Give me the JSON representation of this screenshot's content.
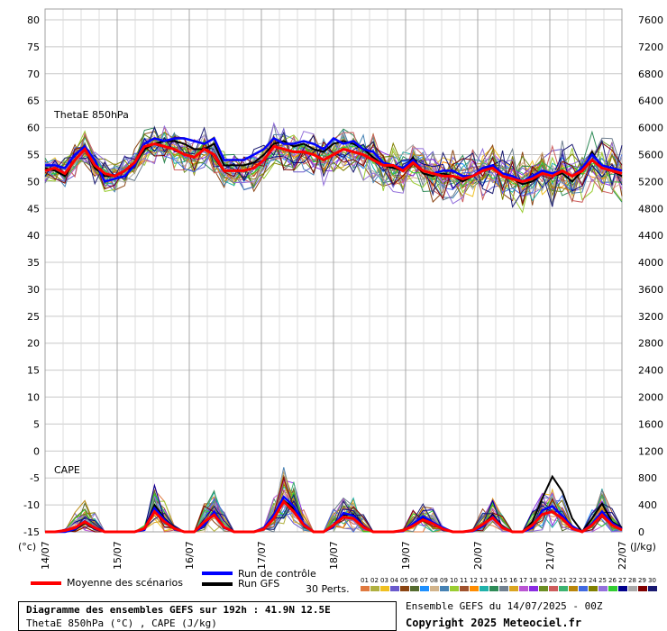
{
  "chart_data": {
    "type": "line",
    "title": "Diagramme des ensembles GEFS sur 192h : 41.9N 12.5E",
    "subtitle": "ThetaE 850hPa (°C) , CAPE (J/kg)",
    "left_axis": {
      "unit_label": "(°c)",
      "ticks": [
        80,
        75,
        70,
        65,
        60,
        55,
        50,
        45,
        40,
        35,
        30,
        25,
        20,
        15,
        10,
        5,
        0,
        -5,
        -10,
        -15
      ],
      "ylim": [
        -15,
        80
      ]
    },
    "right_axis": {
      "unit_label": "(J/kg)",
      "ticks": [
        7600,
        7200,
        6800,
        6400,
        6000,
        5600,
        5200,
        4800,
        4400,
        4000,
        3600,
        3200,
        2800,
        2400,
        2000,
        1600,
        1200,
        800,
        400,
        0
      ],
      "ylim": [
        0,
        7600
      ]
    },
    "x_ticks": [
      "14/07",
      "15/07",
      "16/07",
      "17/07",
      "18/07",
      "19/07",
      "20/07",
      "21/07",
      "22/07"
    ],
    "panel_labels": {
      "thetae": "ThetaE 850hPa",
      "cape": "CAPE"
    },
    "grid": true,
    "step_hours": 6,
    "thetae_mean": [
      52,
      52.5,
      51.5,
      54,
      56,
      53,
      51.5,
      51,
      52,
      53.5,
      56.5,
      57,
      56.5,
      56,
      55,
      54.5,
      56,
      55,
      52,
      52,
      52,
      52.5,
      54,
      56.5,
      56,
      55.5,
      55.5,
      55,
      54,
      55,
      56,
      55.5,
      55,
      54,
      53,
      53,
      52,
      53.5,
      52,
      51.5,
      51,
      51,
      50.5,
      51,
      52,
      52.5,
      51,
      50.5,
      50,
      50.5,
      51.5,
      51,
      52,
      51,
      52,
      54,
      52.5,
      52,
      51.5
    ],
    "thetae_control": [
      53,
      53,
      52.5,
      55,
      56.5,
      54,
      50,
      50.5,
      51,
      53,
      57,
      58,
      57.5,
      58,
      58,
      57.5,
      57,
      58,
      54,
      54,
      54,
      55,
      56,
      58,
      57,
      57,
      57.5,
      57,
      56,
      58,
      57,
      57.5,
      56,
      55.5,
      53.5,
      53,
      52.5,
      54,
      52,
      51.5,
      52,
      52,
      51,
      51,
      52.5,
      53,
      51.5,
      51,
      50,
      51,
      52,
      51.5,
      52,
      51,
      52.5,
      55,
      53,
      52.5,
      52
    ],
    "thetae_gfs": [
      52.5,
      52,
      51,
      54,
      56,
      52.5,
      51,
      51,
      52,
      53,
      56,
      57,
      57.5,
      57.5,
      57,
      56,
      56,
      57,
      53,
      53,
      53,
      53.5,
      55,
      57,
      57.5,
      56.5,
      57,
      56,
      55.5,
      57,
      57.5,
      57,
      56,
      54.5,
      53,
      52.5,
      52,
      54.5,
      51.5,
      51,
      51.5,
      51,
      50,
      51,
      52,
      53,
      51,
      50.5,
      49.5,
      50,
      51.5,
      51,
      51.5,
      50,
      52,
      55.5,
      52.5,
      52,
      51
    ],
    "cape_mean": [
      0,
      0,
      20,
      60,
      150,
      60,
      0,
      0,
      0,
      0,
      50,
      300,
      150,
      50,
      0,
      0,
      150,
      250,
      70,
      0,
      0,
      0,
      40,
      200,
      450,
      300,
      100,
      0,
      0,
      100,
      220,
      200,
      70,
      0,
      0,
      0,
      20,
      90,
      180,
      120,
      40,
      0,
      0,
      20,
      110,
      210,
      60,
      0,
      0,
      100,
      260,
      300,
      200,
      50,
      0,
      100,
      250,
      100,
      30
    ],
    "cape_control": [
      0,
      0,
      0,
      40,
      160,
      50,
      0,
      0,
      0,
      0,
      30,
      350,
      180,
      40,
      0,
      0,
      100,
      300,
      60,
      0,
      0,
      0,
      60,
      250,
      520,
      380,
      120,
      0,
      0,
      80,
      280,
      240,
      80,
      0,
      0,
      0,
      10,
      120,
      230,
      140,
      60,
      0,
      0,
      10,
      80,
      230,
      70,
      0,
      0,
      60,
      320,
      380,
      240,
      80,
      0,
      120,
      300,
      130,
      40
    ],
    "cape_gfs": [
      0,
      0,
      0,
      30,
      130,
      40,
      0,
      0,
      0,
      0,
      40,
      400,
      200,
      60,
      0,
      0,
      120,
      260,
      60,
      0,
      0,
      0,
      50,
      220,
      470,
      340,
      100,
      0,
      0,
      90,
      250,
      260,
      90,
      0,
      0,
      0,
      20,
      100,
      200,
      130,
      50,
      0,
      0,
      20,
      100,
      250,
      80,
      0,
      0,
      150,
      500,
      820,
      600,
      200,
      0,
      200,
      420,
      150,
      60
    ],
    "legend": {
      "mean": "Moyenne des scénarios",
      "control": "Run de contrôle",
      "gfs": "Run GFS",
      "perts_label": "30 Perts."
    },
    "colors": {
      "mean": "#ff0000",
      "control": "#0000ff",
      "gfs": "#000000",
      "grid": "#c8c8c8"
    },
    "perturbations": [
      {
        "name": "01",
        "color": "#e07a3f"
      },
      {
        "name": "02",
        "color": "#b0b040"
      },
      {
        "name": "03",
        "color": "#f0c020"
      },
      {
        "name": "04",
        "color": "#6a5acd"
      },
      {
        "name": "05",
        "color": "#8b4513"
      },
      {
        "name": "06",
        "color": "#556b2f"
      },
      {
        "name": "07",
        "color": "#1e90ff"
      },
      {
        "name": "08",
        "color": "#d2b48c"
      },
      {
        "name": "09",
        "color": "#4682b4"
      },
      {
        "name": "10",
        "color": "#9acd32"
      },
      {
        "name": "11",
        "color": "#a0522d"
      },
      {
        "name": "12",
        "color": "#ff8c00"
      },
      {
        "name": "13",
        "color": "#20b2aa"
      },
      {
        "name": "14",
        "color": "#2e8b57"
      },
      {
        "name": "15",
        "color": "#708090"
      },
      {
        "name": "16",
        "color": "#daa520"
      },
      {
        "name": "17",
        "color": "#ba55d3"
      },
      {
        "name": "18",
        "color": "#8a2be2"
      },
      {
        "name": "19",
        "color": "#6b8e23"
      },
      {
        "name": "20",
        "color": "#cd5c5c"
      },
      {
        "name": "21",
        "color": "#3cb371"
      },
      {
        "name": "22",
        "color": "#b8860b"
      },
      {
        "name": "23",
        "color": "#4169e1"
      },
      {
        "name": "24",
        "color": "#808000"
      },
      {
        "name": "25",
        "color": "#9370db"
      },
      {
        "name": "26",
        "color": "#32cd32"
      },
      {
        "name": "27",
        "color": "#00008b"
      },
      {
        "name": "28",
        "color": "#a9a9a9"
      },
      {
        "name": "29",
        "color": "#800000"
      },
      {
        "name": "30",
        "color": "#191970"
      }
    ]
  },
  "info": {
    "line1": "Diagramme des ensembles GEFS sur 192h : 41.9N 12.5E",
    "line2": "ThetaE 850hPa (°C) , CAPE (J/kg)",
    "run": "Ensemble GEFS du 14/07/2025 - 00Z",
    "copyright": "Copyright 2025 Meteociel.fr"
  }
}
